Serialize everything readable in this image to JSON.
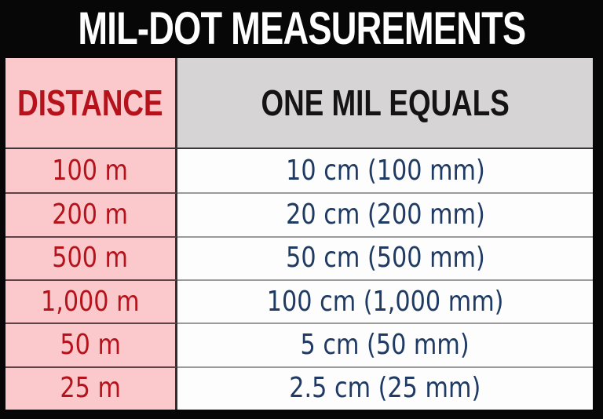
{
  "chart_data": {
    "type": "table",
    "title": "MIL-DOT MEASUREMENTS",
    "columns": [
      "DISTANCE",
      "ONE MIL EQUALS"
    ],
    "rows": [
      [
        "100 m",
        "10 cm (100 mm)"
      ],
      [
        "200 m",
        "20 cm (200 mm)"
      ],
      [
        "500 m",
        "50 cm (500 mm)"
      ],
      [
        "1,000 m",
        "100 cm (1,000 mm)"
      ],
      [
        "50 m",
        "5 cm (50 mm)"
      ],
      [
        "25 m",
        "2.5 cm (25 mm)"
      ]
    ]
  },
  "colors": {
    "background_black": "#070707",
    "title_text": "#ffffff",
    "distance_column_bg": "#fbc9cc",
    "distance_text_red": "#b5121b",
    "header_mil_bg": "#d6d4d4",
    "header_mil_text": "#141414",
    "mil_column_bg": "#fdfdfd",
    "mil_text_navy": "#1f3a63",
    "column_divider": "#332e2f",
    "row_divider_pink_side": "#5d4247",
    "row_divider_white_side": "#9b9b9b"
  }
}
